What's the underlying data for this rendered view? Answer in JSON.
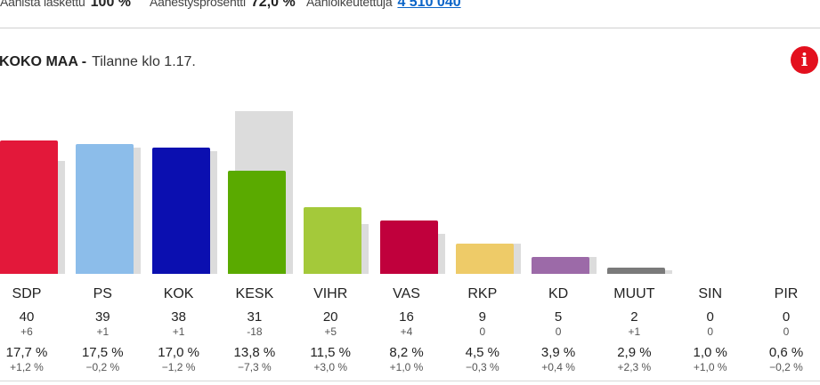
{
  "header": {
    "counted_label": "Äänistä laskettu",
    "counted_value": "100 %",
    "turnout_label": "Äänestysprosentti",
    "turnout_value": "72,0 %",
    "eligible_label": "Äänioikeutettuja",
    "eligible_value": "4 510 040"
  },
  "region": {
    "name": "KOKO MAA -",
    "status": "Tilanne klo 1.17."
  },
  "info_icon": {
    "name": "info-icon",
    "glyph": "i",
    "color": "#e3101e"
  },
  "chart_data": {
    "type": "bar",
    "value_metric": "seats",
    "categories": [
      "SDP",
      "PS",
      "KOK",
      "KESK",
      "VIHR",
      "VAS",
      "RKP",
      "KD",
      "MUUT",
      "SIN",
      "PIR"
    ],
    "series": [
      {
        "values": [
          40,
          39,
          38,
          31,
          20,
          16,
          9,
          5,
          2,
          0,
          0
        ]
      },
      {
        "values": [
          34,
          38,
          37,
          49,
          15,
          12,
          9,
          5,
          1,
          0,
          0
        ]
      }
    ],
    "ylim": [
      0,
      50
    ],
    "colors": [
      "#e3183a",
      "#8cbdea",
      "#0b0fb0",
      "#5aaa00",
      "#a4c93a",
      "#c0003c",
      "#eecb68",
      "#9c6aa8",
      "#7a7a7a",
      "#cccccc",
      "#cccccc"
    ],
    "parties": [
      {
        "name": "SDP",
        "seats": "40",
        "seat_change": "+6",
        "percent": "17,7 %",
        "percent_change": "+1,2 %"
      },
      {
        "name": "PS",
        "seats": "39",
        "seat_change": "+1",
        "percent": "17,5 %",
        "percent_change": "−0,2 %"
      },
      {
        "name": "KOK",
        "seats": "38",
        "seat_change": "+1",
        "percent": "17,0 %",
        "percent_change": "−1,2 %"
      },
      {
        "name": "KESK",
        "seats": "31",
        "seat_change": "-18",
        "percent": "13,8 %",
        "percent_change": "−7,3 %"
      },
      {
        "name": "VIHR",
        "seats": "20",
        "seat_change": "+5",
        "percent": "11,5 %",
        "percent_change": "+3,0 %"
      },
      {
        "name": "VAS",
        "seats": "16",
        "seat_change": "+4",
        "percent": "8,2 %",
        "percent_change": "+1,0 %"
      },
      {
        "name": "RKP",
        "seats": "9",
        "seat_change": "0",
        "percent": "4,5 %",
        "percent_change": "−0,3 %"
      },
      {
        "name": "KD",
        "seats": "5",
        "seat_change": "0",
        "percent": "3,9 %",
        "percent_change": "+0,4 %"
      },
      {
        "name": "MUUT",
        "seats": "2",
        "seat_change": "+1",
        "percent": "2,9 %",
        "percent_change": "+2,3 %"
      },
      {
        "name": "SIN",
        "seats": "0",
        "seat_change": "0",
        "percent": "1,0 %",
        "percent_change": "+1,0 %"
      },
      {
        "name": "PIR",
        "seats": "0",
        "seat_change": "0",
        "percent": "0,6 %",
        "percent_change": "−0,2 %"
      }
    ]
  }
}
